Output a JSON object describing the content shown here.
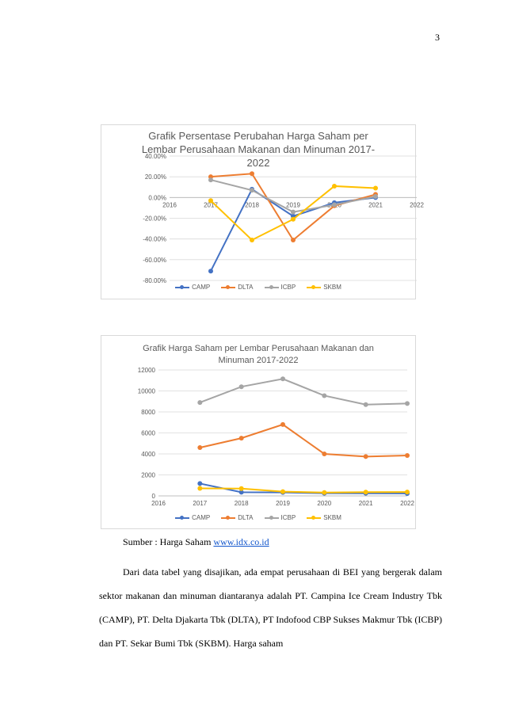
{
  "page": {
    "number": "3"
  },
  "chart_data": [
    {
      "type": "line",
      "title_lines": [
        "Grafik Persentase Perubahan Harga Saham per",
        "Lembar Perusahaan Makanan dan Minuman 2017-",
        "2022"
      ],
      "x_ticks": [
        "2016",
        "2017",
        "2018",
        "2019",
        "2020",
        "2021",
        "2022"
      ],
      "xlim": [
        2016,
        2022
      ],
      "y_ticks": [
        "40.00%",
        "20.00%",
        "0.00%",
        "-20.00%",
        "-40.00%",
        "-60.00%",
        "-80.00%"
      ],
      "ylim": [
        -80,
        40
      ],
      "grid": true,
      "legend_position": "bottom",
      "series": [
        {
          "name": "CAMP",
          "color": "#4472c4",
          "x": [
            2017,
            2018,
            2019,
            2020,
            2021
          ],
          "values": [
            -71,
            8,
            -18,
            -5,
            0
          ]
        },
        {
          "name": "DLTA",
          "color": "#ed7d31",
          "x": [
            2017,
            2018,
            2019,
            2020,
            2021
          ],
          "values": [
            20,
            23,
            -41,
            -8,
            3
          ]
        },
        {
          "name": "ICBP",
          "color": "#a5a5a5",
          "x": [
            2017,
            2018,
            2019,
            2020,
            2021
          ],
          "values": [
            17,
            7,
            -14,
            -7,
            1
          ]
        },
        {
          "name": "SKBM",
          "color": "#ffc000",
          "x": [
            2017,
            2018,
            2019,
            2020,
            2021
          ],
          "values": [
            -3,
            -41,
            -21,
            11,
            9
          ]
        }
      ]
    },
    {
      "type": "line",
      "title_lines": [
        "Grafik Harga Saham per Lembar Perusahaan Makanan dan",
        "Minuman 2017-2022"
      ],
      "x_ticks": [
        "2016",
        "2017",
        "2018",
        "2019",
        "2020",
        "2021",
        "2022"
      ],
      "xlim": [
        2016,
        2022
      ],
      "y_ticks": [
        "12000",
        "10000",
        "8000",
        "6000",
        "4000",
        "2000",
        "0"
      ],
      "ylim": [
        0,
        12000
      ],
      "grid": true,
      "legend_position": "bottom",
      "series": [
        {
          "name": "CAMP",
          "color": "#4472c4",
          "x": [
            2017,
            2018,
            2019,
            2020,
            2021,
            2022
          ],
          "values": [
            1180,
            350,
            330,
            250,
            250,
            230
          ]
        },
        {
          "name": "DLTA",
          "color": "#ed7d31",
          "x": [
            2017,
            2018,
            2019,
            2020,
            2021,
            2022
          ],
          "values": [
            4600,
            5500,
            6800,
            4000,
            3750,
            3850
          ]
        },
        {
          "name": "ICBP",
          "color": "#a5a5a5",
          "x": [
            2017,
            2018,
            2019,
            2020,
            2021,
            2022
          ],
          "values": [
            8900,
            10400,
            11150,
            9550,
            8700,
            8800
          ]
        },
        {
          "name": "SKBM",
          "color": "#ffc000",
          "x": [
            2017,
            2018,
            2019,
            2020,
            2021,
            2022
          ],
          "values": [
            715,
            695,
            410,
            324,
            360,
            370
          ]
        }
      ]
    }
  ],
  "source": {
    "label": "Sumber : Harga Saham ",
    "link": "www.idx.co.id"
  },
  "paragraph": "Dari data tabel yang disajikan, ada empat perusahaan di BEI yang bergerak dalam sektor makanan dan minuman diantaranya adalah PT. Campina Ice Cream Industry Tbk (CAMP), PT. Delta Djakarta Tbk (DLTA), PT Indofood CBP Sukses Makmur Tbk (ICBP) dan PT. Sekar Bumi Tbk (SKBM). Harga saham"
}
